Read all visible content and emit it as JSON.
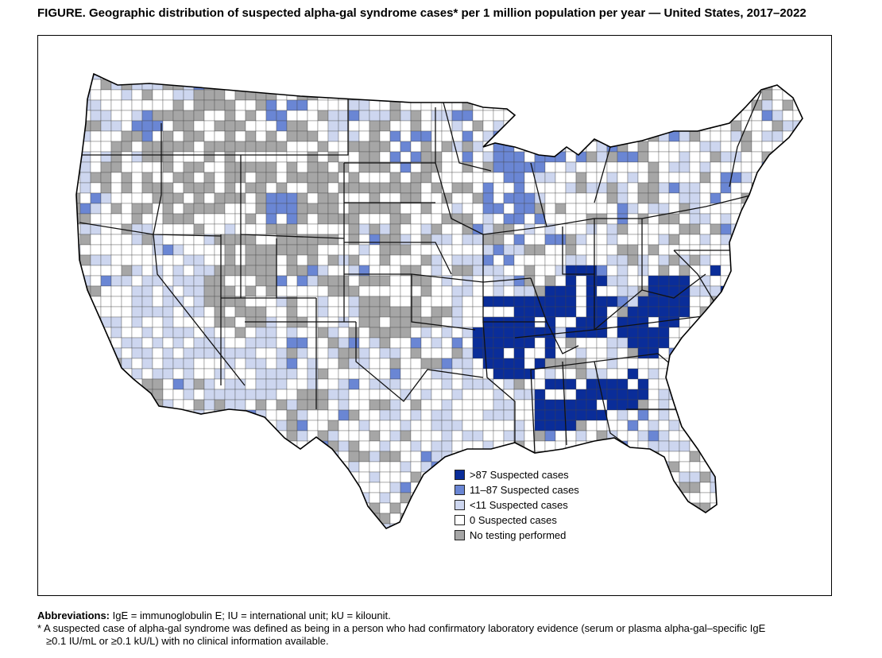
{
  "figure_title": "FIGURE. Geographic distribution of suspected alpha-gal syndrome cases* per 1 million population per year — United States, 2017–2022",
  "legend": [
    {
      "label": ">87 Suspected cases",
      "color": "#0a2d99"
    },
    {
      "label": "11–87 Suspected cases",
      "color": "#6a86d4"
    },
    {
      "label": "<11 Suspected cases",
      "color": "#cdd6ef"
    },
    {
      "label": "0 Suspected cases",
      "color": "#ffffff"
    },
    {
      "label": "No testing performed",
      "color": "#a6a6a6"
    }
  ],
  "footnotes": {
    "abbreviations_label": "Abbreviations:",
    "abbreviations_text": "IgE = immunoglobulin E; IU = international unit; kU = kilounit.",
    "note_line1": "* A suspected case of alpha-gal syndrome was defined as being in a person who had confirmatory laboratory evidence (serum or plasma alpha-gal–specific IgE",
    "note_line2": "≥0.1 IU/mL or ≥0.1 kU/L) with no clinical information available."
  }
}
